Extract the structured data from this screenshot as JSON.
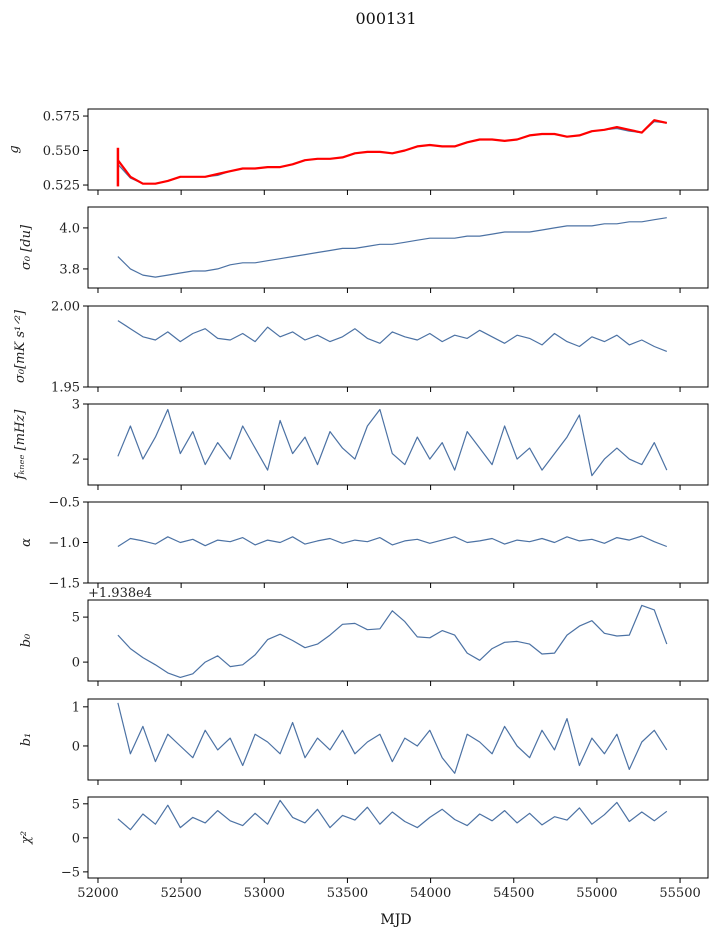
{
  "chart_data": {
    "type": "line",
    "title": "000131",
    "xlabel": "MJD",
    "xlim": [
      51940,
      55668
    ],
    "xticks": [
      52000,
      52500,
      53000,
      53500,
      54000,
      54500,
      55000,
      55500
    ],
    "x": [
      52120,
      52195,
      52270,
      52345,
      52420,
      52495,
      52570,
      52645,
      52720,
      52795,
      52870,
      52945,
      53020,
      53095,
      53170,
      53245,
      53320,
      53395,
      53470,
      53545,
      53620,
      53695,
      53770,
      53845,
      53920,
      53995,
      54070,
      54145,
      54220,
      54295,
      54370,
      54445,
      54520,
      54595,
      54670,
      54745,
      54820,
      54895,
      54970,
      55045,
      55120,
      55195,
      55270,
      55345,
      55420
    ],
    "line_color": "#4c72a4",
    "fit_color": "#ff0000",
    "panels": [
      {
        "ylabel": "g",
        "ylim": [
          0.5214,
          0.5801
        ],
        "yticks": [
          0.525,
          0.55,
          0.575
        ],
        "ytick_labels": [
          "0.525",
          "0.550",
          "0.575"
        ],
        "series": [
          {
            "name": "g",
            "color": "#4c72a4",
            "values": [
              0.54,
              0.53,
              0.526,
              0.526,
              0.528,
              0.531,
              0.531,
              0.531,
              0.532,
              0.535,
              0.537,
              0.537,
              0.538,
              0.538,
              0.54,
              0.543,
              0.544,
              0.544,
              0.545,
              0.548,
              0.549,
              0.549,
              0.548,
              0.55,
              0.553,
              0.554,
              0.553,
              0.553,
              0.556,
              0.558,
              0.558,
              0.557,
              0.558,
              0.561,
              0.562,
              0.562,
              0.56,
              0.561,
              0.564,
              0.565,
              0.566,
              0.564,
              0.563,
              0.571,
              0.57
            ]
          },
          {
            "name": "g fit",
            "color": "#ff0000",
            "spike": [
              0.524,
              0.552
            ],
            "values": [
              0.543,
              0.531,
              0.526,
              0.526,
              0.528,
              0.531,
              0.531,
              0.531,
              0.533,
              0.535,
              0.537,
              0.537,
              0.538,
              0.538,
              0.54,
              0.543,
              0.544,
              0.544,
              0.545,
              0.548,
              0.549,
              0.549,
              0.548,
              0.55,
              0.553,
              0.554,
              0.553,
              0.553,
              0.556,
              0.558,
              0.558,
              0.557,
              0.558,
              0.561,
              0.562,
              0.562,
              0.56,
              0.561,
              0.564,
              0.565,
              0.567,
              0.565,
              0.563,
              0.572,
              0.57
            ]
          }
        ]
      },
      {
        "ylabel": "σ₀ [du]",
        "ylim": [
          3.707,
          4.102
        ],
        "yticks": [
          3.8,
          4.0
        ],
        "ytick_labels": [
          "3.8",
          "4.0"
        ],
        "series": [
          {
            "name": "sigma0_du",
            "color": "#4c72a4",
            "values": [
              3.86,
              3.8,
              3.77,
              3.76,
              3.77,
              3.78,
              3.79,
              3.79,
              3.8,
              3.82,
              3.83,
              3.83,
              3.84,
              3.85,
              3.86,
              3.87,
              3.88,
              3.89,
              3.9,
              3.9,
              3.91,
              3.92,
              3.92,
              3.93,
              3.94,
              3.95,
              3.95,
              3.95,
              3.96,
              3.96,
              3.97,
              3.98,
              3.98,
              3.98,
              3.99,
              4.0,
              4.01,
              4.01,
              4.01,
              4.02,
              4.02,
              4.03,
              4.03,
              4.04,
              4.05
            ]
          }
        ]
      },
      {
        "ylabel": "σ₀[mK s¹ᐟ²]",
        "ylim": [
          1.95,
          2.0
        ],
        "yticks": [
          1.95,
          2.0
        ],
        "ytick_labels": [
          "1.95",
          "2.00"
        ],
        "series": [
          {
            "name": "sigma0_mK",
            "color": "#4c72a4",
            "values": [
              1.991,
              1.986,
              1.981,
              1.979,
              1.984,
              1.978,
              1.983,
              1.986,
              1.98,
              1.979,
              1.983,
              1.978,
              1.987,
              1.981,
              1.984,
              1.979,
              1.982,
              1.978,
              1.981,
              1.986,
              1.98,
              1.977,
              1.984,
              1.981,
              1.979,
              1.983,
              1.978,
              1.982,
              1.98,
              1.985,
              1.981,
              1.977,
              1.982,
              1.98,
              1.976,
              1.983,
              1.978,
              1.975,
              1.981,
              1.978,
              1.982,
              1.976,
              1.979,
              1.975,
              1.972
            ]
          }
        ]
      },
      {
        "ylabel": "fₖₙₑₑ [mHz]",
        "ylim": [
          1.53,
          3.0
        ],
        "yticks": [
          2,
          3
        ],
        "ytick_labels": [
          "2",
          "3"
        ],
        "series": [
          {
            "name": "fknee",
            "color": "#4c72a4",
            "values": [
              2.05,
              2.6,
              2.0,
              2.4,
              2.9,
              2.1,
              2.5,
              1.9,
              2.3,
              2.0,
              2.6,
              2.2,
              1.8,
              2.7,
              2.1,
              2.4,
              1.9,
              2.5,
              2.2,
              2.0,
              2.6,
              2.9,
              2.1,
              1.9,
              2.4,
              2.0,
              2.3,
              1.8,
              2.5,
              2.2,
              1.9,
              2.6,
              2.0,
              2.2,
              1.8,
              2.1,
              2.4,
              2.8,
              1.7,
              2.0,
              2.2,
              2.0,
              1.9,
              2.3,
              1.8
            ]
          }
        ]
      },
      {
        "ylabel": "α",
        "ylim": [
          -1.5,
          -0.5
        ],
        "yticks": [
          -1.5,
          -1.0,
          -0.5
        ],
        "ytick_labels": [
          "−1.5",
          "−1.0",
          "−0.5"
        ],
        "series": [
          {
            "name": "alpha",
            "color": "#4c72a4",
            "values": [
              -1.05,
              -0.95,
              -0.98,
              -1.02,
              -0.93,
              -1.0,
              -0.96,
              -1.04,
              -0.97,
              -0.99,
              -0.94,
              -1.03,
              -0.97,
              -1.0,
              -0.93,
              -1.02,
              -0.98,
              -0.95,
              -1.01,
              -0.97,
              -0.99,
              -0.94,
              -1.03,
              -0.98,
              -0.96,
              -1.01,
              -0.97,
              -0.93,
              -1.0,
              -0.98,
              -0.95,
              -1.02,
              -0.97,
              -0.99,
              -0.95,
              -1.0,
              -0.93,
              -0.98,
              -0.96,
              -1.01,
              -0.94,
              -0.97,
              -0.92,
              -0.99,
              -1.05
            ]
          }
        ]
      },
      {
        "ylabel": "b₀",
        "offset_text": "+1.938e4",
        "ylim": [
          -2.1,
          6.9
        ],
        "yticks": [
          0,
          5
        ],
        "ytick_labels": [
          "0",
          "5"
        ],
        "series": [
          {
            "name": "b0",
            "color": "#4c72a4",
            "values": [
              3.0,
              1.5,
              0.5,
              -0.3,
              -1.2,
              -1.7,
              -1.3,
              0.0,
              0.7,
              -0.5,
              -0.3,
              0.8,
              2.5,
              3.1,
              2.4,
              1.6,
              2.0,
              3.0,
              4.2,
              4.3,
              3.6,
              3.7,
              5.7,
              4.5,
              2.8,
              2.7,
              3.5,
              3.0,
              1.0,
              0.2,
              1.5,
              2.2,
              2.3,
              2.0,
              0.9,
              1.0,
              3.0,
              4.0,
              4.6,
              3.2,
              2.9,
              3.0,
              6.3,
              5.8,
              2.0
            ]
          }
        ]
      },
      {
        "ylabel": "b₁",
        "ylim": [
          -0.87,
          1.2
        ],
        "yticks": [
          0,
          1
        ],
        "ytick_labels": [
          "0",
          "1"
        ],
        "series": [
          {
            "name": "b1",
            "color": "#4c72a4",
            "values": [
              1.1,
              -0.2,
              0.5,
              -0.4,
              0.3,
              0.0,
              -0.3,
              0.4,
              -0.1,
              0.2,
              -0.5,
              0.3,
              0.1,
              -0.2,
              0.6,
              -0.3,
              0.2,
              -0.1,
              0.4,
              -0.2,
              0.1,
              0.3,
              -0.4,
              0.2,
              0.0,
              0.4,
              -0.3,
              -0.7,
              0.3,
              0.1,
              -0.2,
              0.5,
              0.0,
              -0.3,
              0.4,
              -0.1,
              0.7,
              -0.5,
              0.2,
              -0.2,
              0.3,
              -0.6,
              0.1,
              0.4,
              -0.1
            ]
          }
        ]
      },
      {
        "ylabel": "χ²",
        "ylim": [
          -5.9,
          6.0
        ],
        "yticks": [
          -5,
          0,
          5
        ],
        "ytick_labels": [
          "−5",
          "0",
          "5"
        ],
        "series": [
          {
            "name": "chi2",
            "color": "#4c72a4",
            "values": [
              2.8,
              1.2,
              3.5,
              2.0,
              4.8,
              1.5,
              3.0,
              2.2,
              4.0,
              2.5,
              1.8,
              3.6,
              2.0,
              5.5,
              3.0,
              2.2,
              4.2,
              1.5,
              3.3,
              2.6,
              4.5,
              2.0,
              3.8,
              2.4,
              1.5,
              3.0,
              4.2,
              2.7,
              1.8,
              3.5,
              2.5,
              4.0,
              2.2,
              3.6,
              1.9,
              3.1,
              2.6,
              4.4,
              2.0,
              3.4,
              5.2,
              2.4,
              3.8,
              2.5,
              3.9
            ]
          }
        ]
      }
    ]
  }
}
